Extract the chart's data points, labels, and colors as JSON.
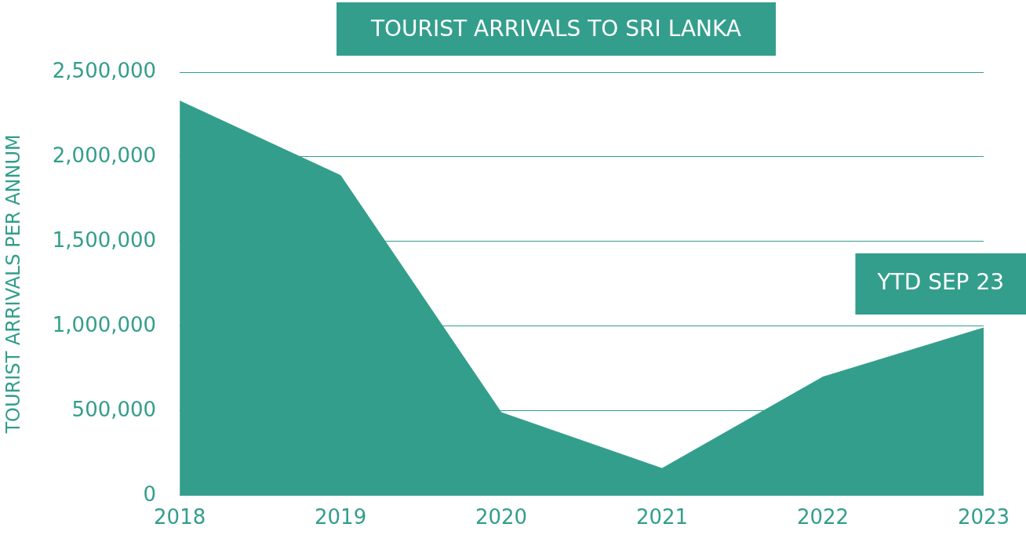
{
  "chart_data": {
    "type": "area",
    "title": "TOURIST ARRIVALS TO SRI LANKA",
    "ylabel": "TOURIST ARRIVALS PER ANNUM",
    "categories": [
      "2018",
      "2019",
      "2020",
      "2021",
      "2022",
      "2023"
    ],
    "values": [
      2330000,
      1890000,
      490000,
      160000,
      700000,
      990000
    ],
    "color": "#339e8c",
    "ylim": [
      0,
      2500000
    ],
    "yticks": [
      {
        "value": 0,
        "label": "0"
      },
      {
        "value": 500000,
        "label": "500,000"
      },
      {
        "value": 1000000,
        "label": "1,000,000"
      },
      {
        "value": 1500000,
        "label": "1,500,000"
      },
      {
        "value": 2000000,
        "label": "2,000,000"
      },
      {
        "value": 2500000,
        "label": "2,500,000"
      }
    ],
    "grid": "y",
    "legend": false,
    "annotations": [
      "YTD SEP 23"
    ]
  }
}
